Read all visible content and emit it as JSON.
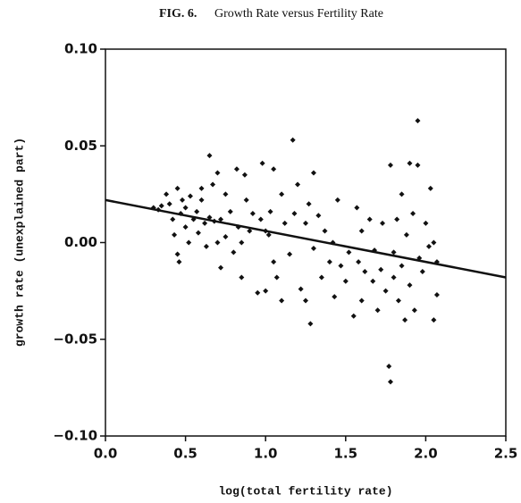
{
  "chart_data": {
    "type": "scatter",
    "fig_label": "FIG. 6.",
    "title": "Growth Rate versus Fertility Rate",
    "x_label": "log(total fertility rate)",
    "y_label": "growth rate (unexplained part)",
    "xlim": [
      0,
      2.5
    ],
    "ylim": [
      -0.1,
      0.1
    ],
    "xticks": [
      {
        "value": 0,
        "label": "0.0"
      },
      {
        "value": 0.5,
        "label": "0.5"
      },
      {
        "value": 1,
        "label": "1.0"
      },
      {
        "value": 1.5,
        "label": "1.5"
      },
      {
        "value": 2,
        "label": "2.0"
      },
      {
        "value": 2.5,
        "label": "2.5"
      }
    ],
    "yticks": [
      {
        "value": -0.1,
        "label": "−0.10"
      },
      {
        "value": -0.05,
        "label": "−0.05"
      },
      {
        "value": 0,
        "label": "0.00"
      },
      {
        "value": 0.05,
        "label": "0.05"
      },
      {
        "value": 0.1,
        "label": "0.10"
      }
    ],
    "color": "#111111",
    "fit_line": {
      "x": [
        0,
        2.5
      ],
      "y": [
        0.022,
        -0.018
      ]
    },
    "x": [
      0.3,
      0.33,
      0.35,
      0.38,
      0.4,
      0.42,
      0.43,
      0.45,
      0.45,
      0.46,
      0.47,
      0.48,
      0.5,
      0.5,
      0.52,
      0.53,
      0.55,
      0.57,
      0.58,
      0.6,
      0.6,
      0.62,
      0.63,
      0.65,
      0.65,
      0.67,
      0.68,
      0.7,
      0.7,
      0.72,
      0.72,
      0.75,
      0.75,
      0.78,
      0.8,
      0.82,
      0.83,
      0.85,
      0.85,
      0.87,
      0.88,
      0.9,
      0.92,
      0.95,
      0.97,
      0.98,
      1.0,
      1.0,
      1.02,
      1.03,
      1.05,
      1.05,
      1.07,
      1.1,
      1.1,
      1.12,
      1.15,
      1.17,
      1.18,
      1.2,
      1.22,
      1.25,
      1.25,
      1.27,
      1.28,
      1.3,
      1.3,
      1.33,
      1.35,
      1.37,
      1.4,
      1.42,
      1.43,
      1.45,
      1.47,
      1.5,
      1.52,
      1.55,
      1.57,
      1.58,
      1.6,
      1.6,
      1.62,
      1.65,
      1.67,
      1.68,
      1.7,
      1.72,
      1.73,
      1.75,
      1.77,
      1.78,
      1.78,
      1.8,
      1.8,
      1.82,
      1.83,
      1.85,
      1.85,
      1.87,
      1.88,
      1.9,
      1.9,
      1.92,
      1.93,
      1.95,
      1.95,
      1.96,
      1.98,
      2.0,
      2.02,
      2.03,
      2.05,
      2.05,
      2.07,
      2.07
    ],
    "values": [
      0.018,
      0.017,
      0.019,
      0.025,
      0.02,
      0.012,
      0.004,
      0.028,
      -0.006,
      -0.01,
      0.015,
      0.022,
      0.018,
      0.008,
      0.0,
      0.024,
      0.012,
      0.016,
      0.005,
      0.022,
      0.028,
      0.01,
      -0.002,
      0.045,
      0.013,
      0.03,
      0.011,
      0.036,
      0.0,
      0.012,
      -0.013,
      0.025,
      0.003,
      0.016,
      -0.005,
      0.038,
      0.008,
      0.0,
      -0.018,
      0.035,
      0.022,
      0.006,
      0.015,
      -0.026,
      0.012,
      0.041,
      -0.025,
      0.006,
      0.004,
      0.016,
      -0.01,
      0.038,
      -0.018,
      -0.03,
      0.025,
      0.01,
      -0.006,
      0.053,
      0.015,
      0.03,
      -0.024,
      0.01,
      -0.03,
      0.02,
      -0.042,
      0.036,
      -0.003,
      0.014,
      -0.018,
      0.006,
      -0.01,
      0.0,
      -0.028,
      0.022,
      -0.012,
      -0.02,
      -0.005,
      -0.038,
      0.018,
      -0.01,
      0.006,
      -0.03,
      -0.015,
      0.012,
      -0.02,
      -0.004,
      -0.035,
      -0.014,
      0.01,
      -0.025,
      -0.064,
      0.04,
      -0.072,
      -0.018,
      -0.005,
      0.012,
      -0.03,
      0.025,
      -0.012,
      -0.04,
      0.004,
      0.041,
      -0.022,
      0.015,
      -0.035,
      0.063,
      0.04,
      -0.008,
      -0.015,
      0.01,
      -0.002,
      0.028,
      -0.04,
      0.0,
      -0.027,
      -0.01
    ]
  }
}
